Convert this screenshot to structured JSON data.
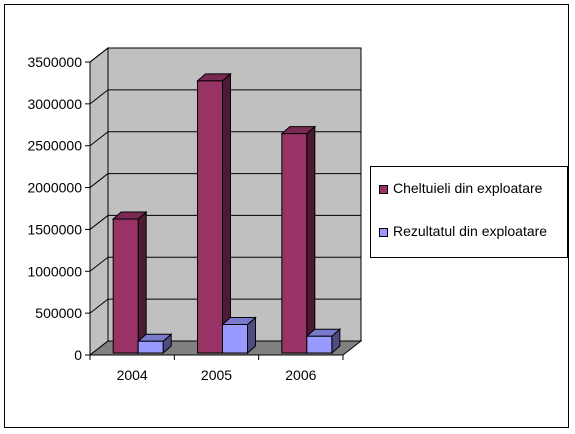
{
  "chart_data": {
    "type": "bar",
    "categories": [
      "2004",
      "2005",
      "2006"
    ],
    "series": [
      {
        "name": "Cheltuieli din exploatare",
        "values": [
          1600000,
          3250000,
          2620000
        ],
        "color": "#993366",
        "side_color": "#4d1a33",
        "top_color": "#7a2952"
      },
      {
        "name": "Rezultatul din exploatare",
        "values": [
          140000,
          340000,
          200000
        ],
        "color": "#9999ff",
        "side_color": "#4d4d80",
        "top_color": "#7a7acc"
      }
    ],
    "ylim": [
      0,
      3500000
    ],
    "yticks": [
      "0",
      "500000",
      "1000000",
      "1500000",
      "2000000",
      "2500000",
      "3000000",
      "3500000"
    ],
    "grid": true,
    "legend_position": "right",
    "wall_color": "#c0c0c0",
    "floor_color": "#808080"
  }
}
